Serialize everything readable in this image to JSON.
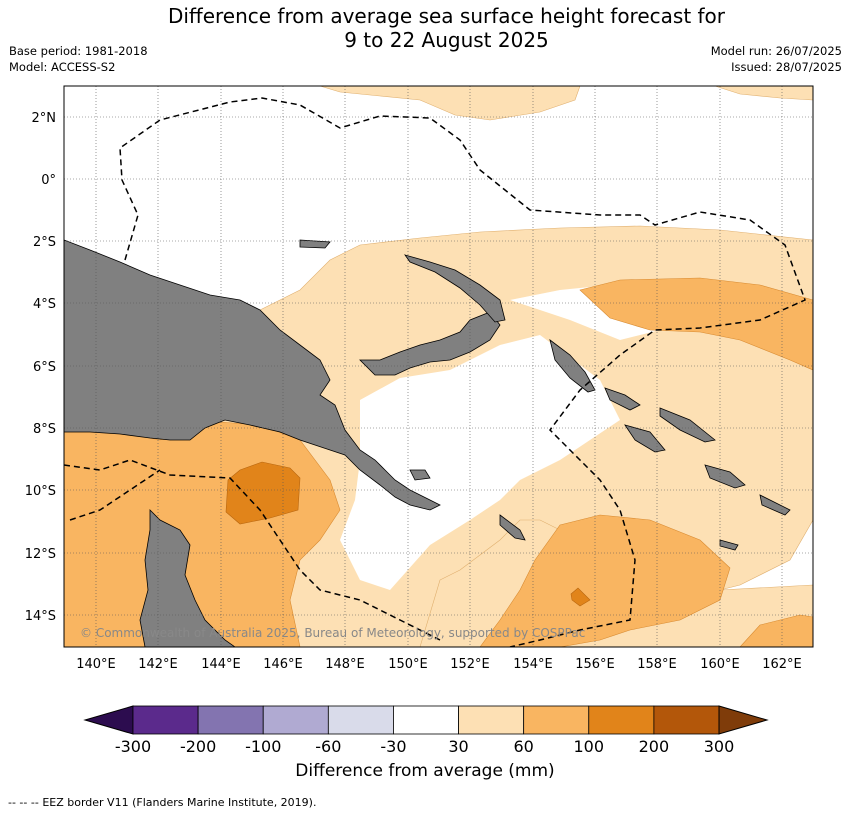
{
  "header": {
    "title_line1": "Difference from average sea surface height forecast for",
    "title_line2": "9 to 22 August 2025",
    "base_period": "Base period: 1981-2018",
    "model": "Model: ACCESS-S2",
    "model_run": "Model run: 26/07/2025",
    "issued": "Issued: 28/07/2025"
  },
  "map": {
    "lon_labels": [
      "140°E",
      "142°E",
      "144°E",
      "146°E",
      "148°E",
      "150°E",
      "152°E",
      "154°E",
      "156°E",
      "158°E",
      "160°E",
      "162°E"
    ],
    "lat_labels": [
      "2°N",
      "0°",
      "2°S",
      "4°S",
      "6°S",
      "8°S",
      "10°S",
      "12°S",
      "14°S"
    ],
    "copyright": "© Commonwealth of Australia 2025, Bureau of Meteorology, supported by COSPPac",
    "colors": {
      "land": "#808080",
      "c30_60": "#fde0b4",
      "c60_100": "#f9b561",
      "c100_200": "#e1841a",
      "ocean": "#ffffff"
    }
  },
  "colorbar": {
    "label": "Difference from average (mm)",
    "ticks": [
      "-300",
      "-200",
      "-100",
      "-60",
      "-30",
      "30",
      "60",
      "100",
      "200",
      "300"
    ],
    "colors": [
      "#2c0c4f",
      "#5b2a8c",
      "#8374b0",
      "#b0aad2",
      "#d9dbea",
      "#ffffff",
      "#fde0b4",
      "#f9b561",
      "#e1841a",
      "#b3570a",
      "#7f3c0a"
    ]
  },
  "legend": {
    "eez_line_symbol": "--  --  --",
    "eez": "EEZ border V11 (Flanders Marine Institute, 2019)."
  }
}
